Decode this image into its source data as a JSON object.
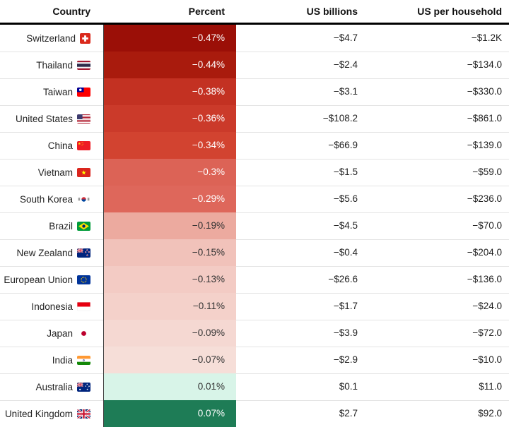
{
  "table": {
    "columns": [
      {
        "label": "Country"
      },
      {
        "label": "Percent"
      },
      {
        "label": "US billions"
      },
      {
        "label": "US per household"
      }
    ],
    "rows": [
      {
        "country": "Switzerland",
        "flag": "ch",
        "flag_icon": "flag-switzerland-icon",
        "percent": "−0.47%",
        "us_billions": "−$4.7",
        "us_per_household": "−$1.2K",
        "percent_bg": "#9b0f07",
        "percent_text": "#ffffff"
      },
      {
        "country": "Thailand",
        "flag": "th",
        "flag_icon": "flag-thailand-icon",
        "percent": "−0.44%",
        "us_billions": "−$2.4",
        "us_per_household": "−$134.0",
        "percent_bg": "#a91b0d",
        "percent_text": "#ffffff"
      },
      {
        "country": "Taiwan",
        "flag": "tw",
        "flag_icon": "flag-taiwan-icon",
        "percent": "−0.38%",
        "us_billions": "−$3.1",
        "us_per_household": "−$330.0",
        "percent_bg": "#c33122",
        "percent_text": "#ffffff"
      },
      {
        "country": "United States",
        "flag": "us",
        "flag_icon": "flag-united-states-icon",
        "percent": "−0.36%",
        "us_billions": "−$108.2",
        "us_per_household": "−$861.0",
        "percent_bg": "#cb3a2a",
        "percent_text": "#ffffff"
      },
      {
        "country": "China",
        "flag": "cn",
        "flag_icon": "flag-china-icon",
        "percent": "−0.34%",
        "us_billions": "−$66.9",
        "us_per_household": "−$139.0",
        "percent_bg": "#d24330",
        "percent_text": "#ffffff"
      },
      {
        "country": "Vietnam",
        "flag": "vn",
        "flag_icon": "flag-vietnam-icon",
        "percent": "−0.3%",
        "us_billions": "−$1.5",
        "us_per_household": "−$59.0",
        "percent_bg": "#dc6356",
        "percent_text": "#ffffff"
      },
      {
        "country": "South Korea",
        "flag": "kr",
        "flag_icon": "flag-south-korea-icon",
        "percent": "−0.29%",
        "us_billions": "−$5.6",
        "us_per_household": "−$236.0",
        "percent_bg": "#de675b",
        "percent_text": "#ffffff"
      },
      {
        "country": "Brazil",
        "flag": "br",
        "flag_icon": "flag-brazil-icon",
        "percent": "−0.19%",
        "us_billions": "−$4.5",
        "us_per_household": "−$70.0",
        "percent_bg": "#ecaa9f",
        "percent_text": "#333333"
      },
      {
        "country": "New Zealand",
        "flag": "nz",
        "flag_icon": "flag-new-zealand-icon",
        "percent": "−0.15%",
        "us_billions": "−$0.4",
        "us_per_household": "−$204.0",
        "percent_bg": "#f1c2ba",
        "percent_text": "#333333"
      },
      {
        "country": "European Union",
        "flag": "eu",
        "flag_icon": "flag-european-union-icon",
        "percent": "−0.13%",
        "us_billions": "−$26.6",
        "us_per_household": "−$136.0",
        "percent_bg": "#f3cbc4",
        "percent_text": "#333333"
      },
      {
        "country": "Indonesia",
        "flag": "id",
        "flag_icon": "flag-indonesia-icon",
        "percent": "−0.11%",
        "us_billions": "−$1.7",
        "us_per_household": "−$24.0",
        "percent_bg": "#f4d1ca",
        "percent_text": "#333333"
      },
      {
        "country": "Japan",
        "flag": "jp",
        "flag_icon": "flag-japan-icon",
        "percent": "−0.09%",
        "us_billions": "−$3.9",
        "us_per_household": "−$72.0",
        "percent_bg": "#f5d8d2",
        "percent_text": "#333333"
      },
      {
        "country": "India",
        "flag": "in",
        "flag_icon": "flag-india-icon",
        "percent": "−0.07%",
        "us_billions": "−$2.9",
        "us_per_household": "−$10.0",
        "percent_bg": "#f6ded8",
        "percent_text": "#333333"
      },
      {
        "country": "Australia",
        "flag": "au",
        "flag_icon": "flag-australia-icon",
        "percent": "0.01%",
        "us_billions": "$0.1",
        "us_per_household": "$11.0",
        "percent_bg": "#d8f4e8",
        "percent_text": "#333333"
      },
      {
        "country": "United Kingdom",
        "flag": "gb",
        "flag_icon": "flag-united-kingdom-icon",
        "percent": "0.07%",
        "us_billions": "$2.7",
        "us_per_household": "$92.0",
        "percent_bg": "#1e7c56",
        "percent_text": "#ffffff"
      }
    ]
  },
  "chart_data": {
    "type": "table",
    "title": "",
    "columns": [
      "Country",
      "Percent",
      "US billions",
      "US per household"
    ],
    "rows": [
      {
        "country": "Switzerland",
        "percent": -0.47,
        "us_billions": -4.7,
        "us_per_household": -1200
      },
      {
        "country": "Thailand",
        "percent": -0.44,
        "us_billions": -2.4,
        "us_per_household": -134.0
      },
      {
        "country": "Taiwan",
        "percent": -0.38,
        "us_billions": -3.1,
        "us_per_household": -330.0
      },
      {
        "country": "United States",
        "percent": -0.36,
        "us_billions": -108.2,
        "us_per_household": -861.0
      },
      {
        "country": "China",
        "percent": -0.34,
        "us_billions": -66.9,
        "us_per_household": -139.0
      },
      {
        "country": "Vietnam",
        "percent": -0.3,
        "us_billions": -1.5,
        "us_per_household": -59.0
      },
      {
        "country": "South Korea",
        "percent": -0.29,
        "us_billions": -5.6,
        "us_per_household": -236.0
      },
      {
        "country": "Brazil",
        "percent": -0.19,
        "us_billions": -4.5,
        "us_per_household": -70.0
      },
      {
        "country": "New Zealand",
        "percent": -0.15,
        "us_billions": -0.4,
        "us_per_household": -204.0
      },
      {
        "country": "European Union",
        "percent": -0.13,
        "us_billions": -26.6,
        "us_per_household": -136.0
      },
      {
        "country": "Indonesia",
        "percent": -0.11,
        "us_billions": -1.7,
        "us_per_household": -24.0
      },
      {
        "country": "Japan",
        "percent": -0.09,
        "us_billions": -3.9,
        "us_per_household": -72.0
      },
      {
        "country": "India",
        "percent": -0.07,
        "us_billions": -2.9,
        "us_per_household": -10.0
      },
      {
        "country": "Australia",
        "percent": 0.01,
        "us_billions": 0.1,
        "us_per_household": 11.0
      },
      {
        "country": "United Kingdom",
        "percent": 0.07,
        "us_billions": 2.7,
        "us_per_household": 92.0
      }
    ],
    "layout": "heat-colored Percent column, red (negative) to green (positive), all columns right-aligned"
  },
  "colors": {
    "header_text": "#111111",
    "body_text": "#222222",
    "row_divider": "#e4e4e4",
    "header_border": "#000000",
    "percent_column_left_border": "#3a3a3a",
    "negative_dark": "#9b0f07",
    "positive_dark": "#1e7c56"
  }
}
